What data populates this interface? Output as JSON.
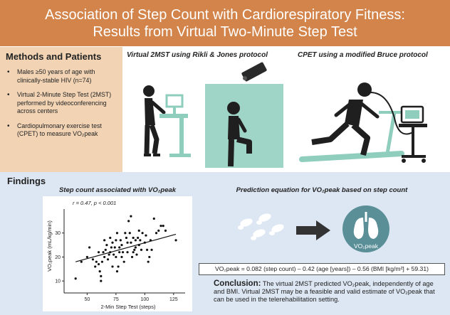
{
  "header": {
    "title_line1": "Association of Step Count with Cardiorespiratory Fitness:",
    "title_line2": "Results from Virtual Two-Minute Step Test"
  },
  "methods": {
    "title": "Methods and Patients",
    "bullets": [
      "Males ≥50 years of age with clinically-stable HIV (n=74)",
      "Virtual 2-Minute Step Test (2MST) performed by videoconferencing across centers",
      "Cardiopulmonary exercise test (CPET) to measure VO₂peak"
    ]
  },
  "panels": {
    "virtual": "Virtual 2MST using Rikli & Jones protocol",
    "cpet": "CPET using a modified Bruce protocol"
  },
  "findings": {
    "title": "Findings",
    "chart_title": "Step count associated with VO₂peak",
    "prediction_title": "Prediction equation for VO₂peak based on step count",
    "lung_label": "VO₂peak",
    "equation": "VO₂peak = 0.082 (step count) – 0.42 (age [years]) – 0.56 (BMI [kg/m²] + 59.31)",
    "conclusion_label": "Conclusion:",
    "conclusion_text": "The virtual 2MST predicted VO₂peak, independently of age and BMI. Virtual 2MST may be a feasible and valid estimate of VO₂peak that can be used in the telerehabilitation setting."
  },
  "colors": {
    "header": "#d2844a",
    "methods_bg": "#f2d4b5",
    "findings_bg": "#dde7f3",
    "lung": "#5a8f98",
    "equipment": "#8fcdbd"
  },
  "chart_data": {
    "type": "scatter",
    "title": "Step count associated with VO₂peak",
    "annotation": "r = 0.47, p < 0.001",
    "xlabel": "2-Min Step Test (steps)",
    "ylabel": "VO₂peak (mL/kg/min)",
    "xlim": [
      30,
      135
    ],
    "ylim": [
      5,
      40
    ],
    "xticks": [
      50,
      75,
      100,
      125
    ],
    "yticks": [
      10,
      20,
      30
    ],
    "trend": {
      "x": [
        40,
        127
      ],
      "y": [
        18,
        29.5
      ]
    },
    "points": [
      [
        40,
        11
      ],
      [
        45,
        18
      ],
      [
        50,
        20
      ],
      [
        52,
        24
      ],
      [
        55,
        19
      ],
      [
        57,
        16
      ],
      [
        58,
        18
      ],
      [
        60,
        22
      ],
      [
        60,
        17
      ],
      [
        61,
        14
      ],
      [
        62,
        12
      ],
      [
        62,
        10
      ],
      [
        63,
        18
      ],
      [
        64,
        22
      ],
      [
        65,
        27
      ],
      [
        65,
        20
      ],
      [
        66,
        23
      ],
      [
        67,
        25
      ],
      [
        68,
        19
      ],
      [
        69,
        21
      ],
      [
        70,
        22
      ],
      [
        70,
        28
      ],
      [
        71,
        24
      ],
      [
        72,
        26
      ],
      [
        72,
        16
      ],
      [
        73,
        21
      ],
      [
        74,
        24
      ],
      [
        75,
        20
      ],
      [
        75,
        27
      ],
      [
        76,
        30
      ],
      [
        76,
        14
      ],
      [
        77,
        16
      ],
      [
        78,
        22
      ],
      [
        78,
        24
      ],
      [
        79,
        27
      ],
      [
        80,
        25
      ],
      [
        80,
        20
      ],
      [
        81,
        22
      ],
      [
        82,
        18
      ],
      [
        83,
        30
      ],
      [
        84,
        28
      ],
      [
        85,
        26
      ],
      [
        85,
        22
      ],
      [
        86,
        35
      ],
      [
        87,
        30
      ],
      [
        88,
        37
      ],
      [
        88,
        26
      ],
      [
        89,
        20
      ],
      [
        90,
        28
      ],
      [
        90,
        22
      ],
      [
        91,
        23
      ],
      [
        92,
        24
      ],
      [
        92,
        27
      ],
      [
        93,
        21
      ],
      [
        94,
        28
      ],
      [
        95,
        25
      ],
      [
        95,
        31
      ],
      [
        96,
        27
      ],
      [
        97,
        23
      ],
      [
        98,
        30
      ],
      [
        100,
        26
      ],
      [
        101,
        29
      ],
      [
        102,
        23
      ],
      [
        103,
        18
      ],
      [
        104,
        20
      ],
      [
        105,
        27
      ],
      [
        106,
        23
      ],
      [
        108,
        36
      ],
      [
        110,
        30
      ],
      [
        112,
        31
      ],
      [
        114,
        33
      ],
      [
        116,
        33
      ],
      [
        118,
        31
      ],
      [
        127,
        27
      ]
    ]
  }
}
